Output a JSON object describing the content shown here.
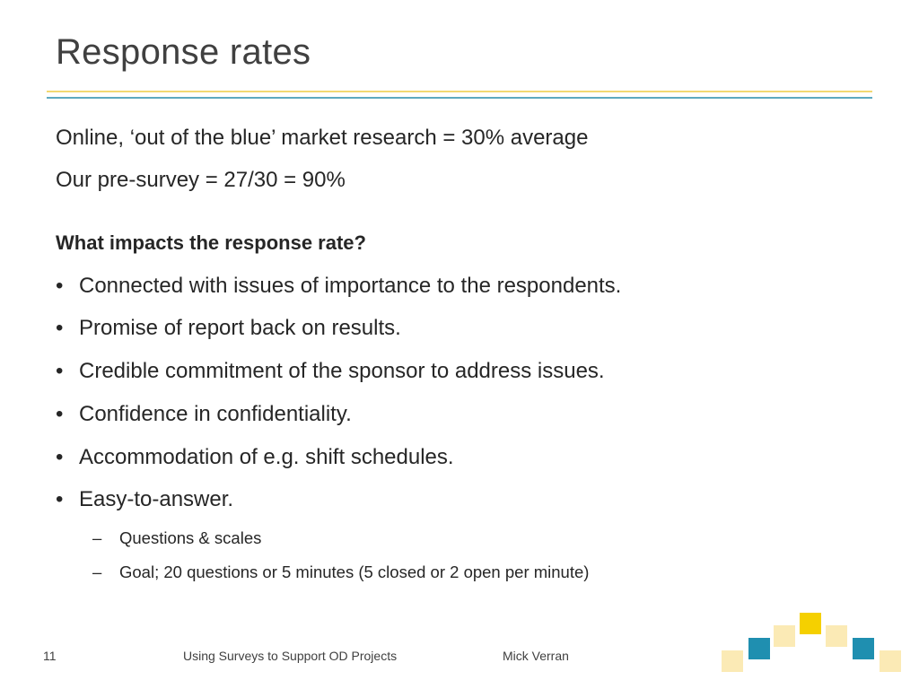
{
  "slide": {
    "title": "Response rates",
    "lines": [
      "Online, ‘out of the blue’ market research = 30% average",
      "Our pre-survey = 27/30 = 90%"
    ],
    "question": "What impacts the response rate?",
    "bullet_marker": "•",
    "bullets": [
      "Connected with issues of importance to the respondents.",
      "Promise of report back on results.",
      "Credible commitment of the sponsor to address issues.",
      "Confidence in confidentiality.",
      "Accommodation of e.g. shift schedules.",
      "Easy-to-answer."
    ],
    "sub_marker": "–",
    "sub_bullets": [
      "Questions & scales",
      "Goal; 20 questions or 5 minutes (5 closed or 2 open per minute)"
    ]
  },
  "footer": {
    "page_number": "11",
    "presentation_title": "Using Surveys to Support OD Projects",
    "author": "Mick Verran"
  },
  "colors": {
    "accent_yellow": "#f2d873",
    "accent_blue": "#5da9c0",
    "square_light": "#fbeab5",
    "square_yellow": "#f5d000",
    "square_blue": "#1f8fb0"
  }
}
